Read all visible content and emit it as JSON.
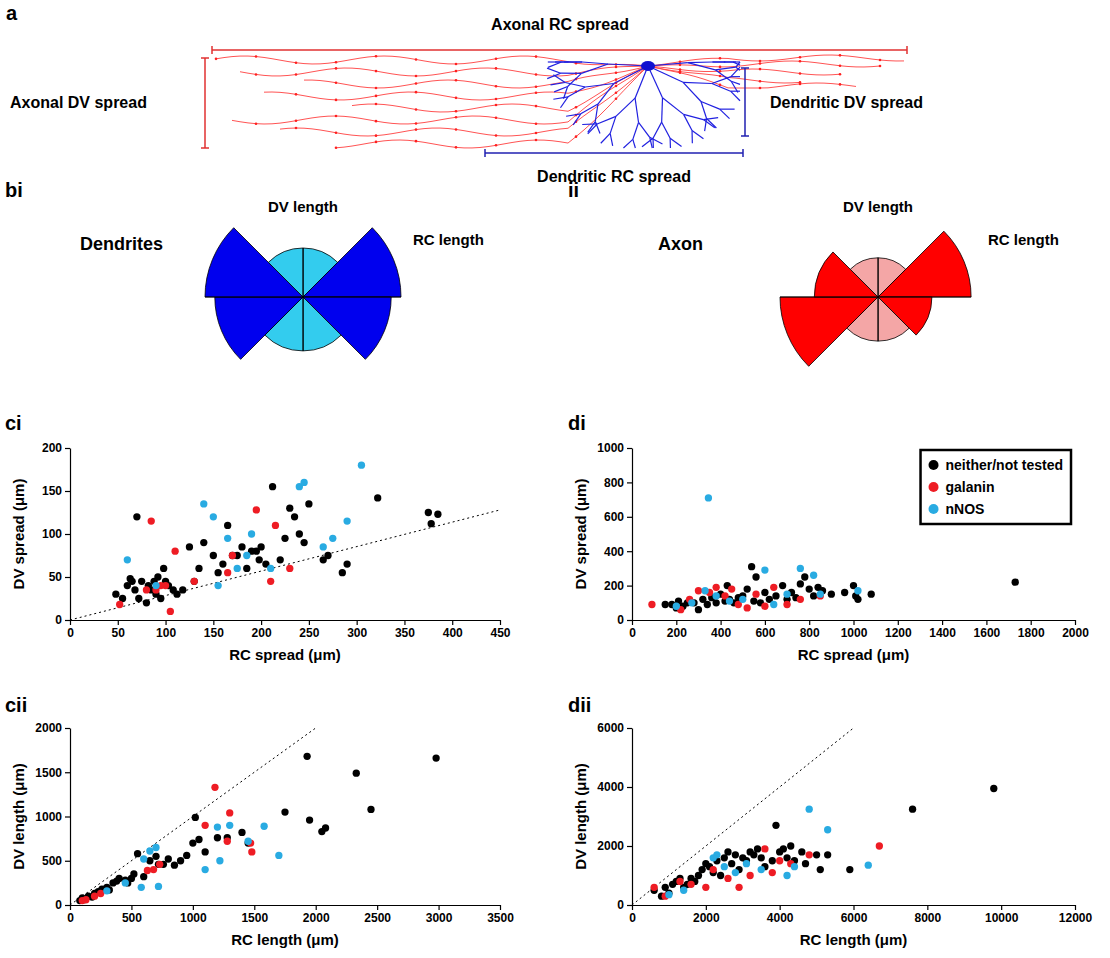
{
  "diagram": {
    "panel_label": "a",
    "labels": [
      "Axonal RC spread",
      "Axonal DV spread",
      "Dendritic DV spread",
      "Dendritic RC spread"
    ]
  },
  "chart_data": [
    {
      "type": "rose",
      "panel_label": "bi",
      "title": "Dendrites",
      "annotations": [
        "DV length",
        "RC length"
      ],
      "values": [
        50,
        100,
        90,
        55,
        55,
        90,
        100,
        50
      ],
      "colors": [
        "#33ccee",
        "#0000ee",
        "#0000ee",
        "#33ccee",
        "#33ccee",
        "#0000ee",
        "#0000ee",
        "#33ccee"
      ],
      "ylim": [
        0,
        100
      ]
    },
    {
      "type": "rose",
      "panel_label": "ii",
      "title": "Axon",
      "annotations": [
        "DV length",
        "RC length"
      ],
      "values": [
        40,
        95,
        55,
        45,
        45,
        100,
        65,
        40
      ],
      "colors": [
        "#f4a6a6",
        "#ff0000",
        "#ff0000",
        "#f4a6a6",
        "#f4a6a6",
        "#ff0000",
        "#ff0000",
        "#f4a6a6"
      ],
      "ylim": [
        0,
        100
      ]
    },
    {
      "type": "scatter",
      "panel_label": "ci",
      "x_label": "RC spread (μm)",
      "y_label": "DV spread (μm)",
      "xlim": [
        0,
        450
      ],
      "ylim": [
        0,
        200
      ],
      "xticks": [
        0,
        50,
        100,
        150,
        200,
        250,
        300,
        350,
        400,
        450
      ],
      "yticks": [
        0,
        50,
        100,
        150,
        200
      ],
      "marker": "circle",
      "reference_line": {
        "x": [
          0,
          450
        ],
        "y": [
          0,
          128
        ],
        "line_style": "dotted"
      },
      "series": [
        {
          "color": "#000000",
          "x": [
            48,
            55,
            60,
            63,
            65,
            68,
            70,
            72,
            75,
            80,
            82,
            85,
            88,
            90,
            92,
            95,
            98,
            100,
            103,
            108,
            112,
            118,
            125,
            130,
            135,
            140,
            150,
            155,
            160,
            165,
            170,
            175,
            180,
            185,
            190,
            195,
            198,
            200,
            205,
            212,
            220,
            225,
            230,
            235,
            240,
            245,
            250,
            265,
            270,
            285,
            290,
            322,
            375,
            378,
            385
          ],
          "values": [
            30,
            25,
            40,
            48,
            45,
            35,
            120,
            25,
            45,
            20,
            40,
            35,
            45,
            30,
            50,
            25,
            60,
            45,
            40,
            35,
            30,
            35,
            85,
            45,
            60,
            90,
            75,
            55,
            65,
            110,
            75,
            75,
            85,
            60,
            80,
            80,
            70,
            85,
            65,
            155,
            70,
            95,
            130,
            120,
            100,
            90,
            135,
            70,
            75,
            55,
            65,
            142,
            125,
            112,
            123
          ]
        },
        {
          "color": "#ee1c24",
          "x": [
            52,
            80,
            85,
            90,
            95,
            100,
            105,
            110,
            130,
            165,
            170,
            195,
            210,
            215,
            230
          ],
          "values": [
            18,
            35,
            115,
            35,
            40,
            40,
            10,
            80,
            45,
            55,
            75,
            128,
            45,
            110,
            60
          ]
        },
        {
          "color": "#29abe2",
          "x": [
            60,
            90,
            140,
            150,
            155,
            165,
            175,
            185,
            190,
            210,
            240,
            245,
            265,
            275,
            290,
            305
          ],
          "values": [
            70,
            40,
            135,
            120,
            40,
            95,
            60,
            75,
            100,
            60,
            155,
            160,
            85,
            95,
            115,
            180
          ]
        }
      ]
    },
    {
      "type": "scatter",
      "panel_label": "di",
      "x_label": "RC spread (μm)",
      "y_label": "DV spread (μm)",
      "xlim": [
        0,
        2000
      ],
      "ylim": [
        0,
        1000
      ],
      "xticks": [
        0,
        200,
        400,
        600,
        800,
        1000,
        1200,
        1400,
        1600,
        1800,
        2000
      ],
      "yticks": [
        0,
        200,
        400,
        600,
        800,
        1000
      ],
      "marker": "circle",
      "legend": "top-right",
      "series": [
        {
          "name": "neither/not tested",
          "color": "#000000",
          "x": [
            150,
            180,
            200,
            210,
            230,
            250,
            280,
            300,
            320,
            340,
            360,
            380,
            400,
            420,
            430,
            440,
            460,
            480,
            500,
            520,
            540,
            550,
            560,
            580,
            600,
            620,
            650,
            680,
            700,
            720,
            740,
            760,
            780,
            800,
            820,
            840,
            860,
            900,
            960,
            1000,
            1010,
            1020,
            1080,
            1730
          ],
          "values": [
            90,
            90,
            70,
            110,
            80,
            100,
            100,
            60,
            120,
            90,
            130,
            100,
            150,
            110,
            200,
            120,
            100,
            130,
            140,
            180,
            310,
            110,
            250,
            100,
            160,
            120,
            140,
            200,
            120,
            160,
            130,
            210,
            250,
            180,
            140,
            190,
            170,
            150,
            160,
            200,
            140,
            120,
            150,
            220
          ]
        },
        {
          "name": "galanin",
          "color": "#ee1c24",
          "x": [
            90,
            220,
            260,
            300,
            350,
            380,
            420,
            450,
            480,
            520,
            560,
            600,
            640,
            700,
            760,
            850
          ],
          "values": [
            90,
            60,
            120,
            170,
            160,
            190,
            140,
            180,
            90,
            70,
            150,
            80,
            190,
            90,
            120,
            140
          ]
        },
        {
          "name": "nNOS",
          "color": "#29abe2",
          "x": [
            200,
            270,
            330,
            345,
            380,
            440,
            500,
            600,
            640,
            700,
            760,
            820,
            850,
            1020
          ],
          "values": [
            80,
            100,
            170,
            710,
            140,
            110,
            120,
            290,
            90,
            150,
            300,
            260,
            150,
            170
          ]
        }
      ]
    },
    {
      "type": "scatter",
      "panel_label": "cii",
      "x_label": "RC length (μm)",
      "y_label": "DV length (μm)",
      "xlim": [
        0,
        3500
      ],
      "ylim": [
        0,
        2000
      ],
      "xticks": [
        0,
        500,
        1000,
        1500,
        2000,
        2500,
        3000,
        3500
      ],
      "yticks": [
        0,
        500,
        1000,
        1500,
        2000
      ],
      "marker": "circle",
      "reference_line": {
        "x": [
          0,
          2000
        ],
        "y": [
          0,
          2000
        ],
        "line_style": "dotted"
      },
      "series": [
        {
          "color": "#000000",
          "x": [
            80,
            100,
            120,
            150,
            180,
            200,
            230,
            260,
            300,
            320,
            350,
            380,
            400,
            450,
            470,
            500,
            520,
            550,
            600,
            650,
            700,
            720,
            760,
            800,
            850,
            900,
            950,
            1000,
            1020,
            1050,
            1100,
            1200,
            1280,
            1400,
            1450,
            1750,
            1930,
            1950,
            2050,
            2080,
            2330,
            2450,
            2980
          ],
          "values": [
            50,
            80,
            60,
            100,
            90,
            130,
            150,
            180,
            200,
            170,
            250,
            270,
            300,
            280,
            250,
            300,
            350,
            580,
            320,
            500,
            550,
            460,
            460,
            520,
            450,
            500,
            560,
            700,
            990,
            740,
            600,
            760,
            760,
            820,
            700,
            1050,
            1680,
            960,
            830,
            870,
            1490,
            1080,
            1660
          ]
        },
        {
          "color": "#ee1c24",
          "x": [
            100,
            130,
            200,
            250,
            630,
            680,
            730,
            1100,
            1180,
            1300,
            1280,
            1480,
            1470
          ],
          "values": [
            50,
            60,
            100,
            130,
            390,
            400,
            460,
            900,
            1330,
            1040,
            720,
            600,
            700
          ]
        },
        {
          "color": "#29abe2",
          "x": [
            300,
            450,
            580,
            600,
            650,
            700,
            720,
            1100,
            1200,
            1220,
            1300,
            1450,
            1580,
            1700
          ],
          "values": [
            160,
            250,
            200,
            520,
            610,
            650,
            210,
            400,
            880,
            500,
            900,
            720,
            890,
            560
          ]
        }
      ]
    },
    {
      "type": "scatter",
      "panel_label": "dii",
      "x_label": "RC length (μm)",
      "y_label": "DV length (μm)",
      "xlim": [
        0,
        12000
      ],
      "ylim": [
        0,
        6000
      ],
      "xticks": [
        0,
        2000,
        4000,
        6000,
        8000,
        10000,
        12000
      ],
      "yticks": [
        0,
        2000,
        4000,
        6000
      ],
      "marker": "circle",
      "reference_line": {
        "x": [
          0,
          6000
        ],
        "y": [
          0,
          6000
        ],
        "line_style": "dotted"
      },
      "series": [
        {
          "color": "#000000",
          "x": [
            600,
            800,
            900,
            1000,
            1100,
            1200,
            1300,
            1400,
            1500,
            1600,
            1700,
            1800,
            1900,
            2000,
            2100,
            2200,
            2300,
            2400,
            2500,
            2600,
            2700,
            2800,
            2900,
            3000,
            3100,
            3200,
            3300,
            3400,
            3500,
            3600,
            3800,
            3900,
            4000,
            4100,
            4200,
            4300,
            4400,
            4600,
            4700,
            5000,
            5100,
            5300,
            5900,
            7600,
            9800
          ],
          "values": [
            500,
            300,
            600,
            400,
            700,
            800,
            900,
            600,
            700,
            900,
            800,
            1000,
            1200,
            1400,
            1300,
            1100,
            1500,
            1000,
            1600,
            1800,
            1400,
            1700,
            1200,
            1600,
            1500,
            1800,
            1700,
            1900,
            1600,
            1300,
            1500,
            2700,
            1800,
            1900,
            1600,
            2000,
            1500,
            1800,
            1400,
            1700,
            1200,
            1700,
            1200,
            3250,
            3950
          ]
        },
        {
          "color": "#ee1c24",
          "x": [
            600,
            900,
            1300,
            1600,
            2000,
            2200,
            2600,
            2900,
            3200,
            3600,
            3800,
            4000,
            4300,
            4800,
            6700
          ],
          "values": [
            600,
            300,
            800,
            700,
            600,
            1200,
            900,
            600,
            1000,
            1900,
            1100,
            1500,
            1400,
            1700,
            2000
          ]
        },
        {
          "color": "#29abe2",
          "x": [
            1000,
            1400,
            2200,
            2300,
            2500,
            2800,
            3100,
            3500,
            4200,
            4400,
            4800,
            5300,
            6400
          ],
          "values": [
            350,
            500,
            1600,
            1700,
            1300,
            1100,
            1400,
            1200,
            1000,
            1300,
            3250,
            2550,
            1350
          ]
        }
      ]
    }
  ]
}
